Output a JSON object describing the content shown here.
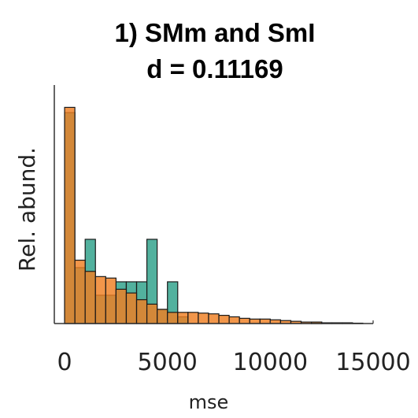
{
  "chart_data": {
    "type": "bar",
    "title": "1) SMm and SmI",
    "subtitle": "d = 0.11169",
    "xlabel": "mse",
    "ylabel": "Rel. abund.",
    "xlim": [
      -500,
      15000
    ],
    "ylim": [
      0,
      0.32
    ],
    "xticks": [
      0,
      5000,
      10000,
      15000
    ],
    "xtick_labels": [
      "0",
      "5000",
      "10000",
      "15000"
    ],
    "grid": false,
    "legend": "none",
    "bin_width": 500,
    "series": [
      {
        "color": "#2ca089",
        "bins": [
          {
            "x0": 0,
            "x1": 500,
            "value": 0.283
          },
          {
            "x0": 500,
            "x1": 1000,
            "value": 0.075
          },
          {
            "x0": 1000,
            "x1": 1500,
            "value": 0.113
          },
          {
            "x0": 1500,
            "x1": 2000,
            "value": 0.038
          },
          {
            "x0": 2000,
            "x1": 2500,
            "value": 0.038
          },
          {
            "x0": 2500,
            "x1": 3000,
            "value": 0.056
          },
          {
            "x0": 3000,
            "x1": 3500,
            "value": 0.056
          },
          {
            "x0": 3500,
            "x1": 4000,
            "value": 0.056
          },
          {
            "x0": 4000,
            "x1": 4500,
            "value": 0.113
          },
          {
            "x0": 4500,
            "x1": 5000,
            "value": 0.019
          },
          {
            "x0": 5000,
            "x1": 5500,
            "value": 0.056
          },
          {
            "x0": 5500,
            "x1": 6000,
            "value": 0.009
          },
          {
            "x0": 12000,
            "x1": 12500,
            "value": 0.002
          }
        ]
      },
      {
        "color": "#ef7f22",
        "bins": [
          {
            "x0": 0,
            "x1": 500,
            "value": 0.29
          },
          {
            "x0": 500,
            "x1": 1000,
            "value": 0.085
          },
          {
            "x0": 1000,
            "x1": 1500,
            "value": 0.07
          },
          {
            "x0": 1500,
            "x1": 2000,
            "value": 0.063
          },
          {
            "x0": 2000,
            "x1": 2500,
            "value": 0.061
          },
          {
            "x0": 2500,
            "x1": 3000,
            "value": 0.046
          },
          {
            "x0": 3000,
            "x1": 3500,
            "value": 0.041
          },
          {
            "x0": 3500,
            "x1": 4000,
            "value": 0.032
          },
          {
            "x0": 4000,
            "x1": 4500,
            "value": 0.026
          },
          {
            "x0": 4500,
            "x1": 5000,
            "value": 0.019
          },
          {
            "x0": 5000,
            "x1": 5500,
            "value": 0.015
          },
          {
            "x0": 5500,
            "x1": 6000,
            "value": 0.015
          },
          {
            "x0": 6000,
            "x1": 6500,
            "value": 0.015
          },
          {
            "x0": 6500,
            "x1": 7000,
            "value": 0.014
          },
          {
            "x0": 7000,
            "x1": 7500,
            "value": 0.013
          },
          {
            "x0": 7500,
            "x1": 8000,
            "value": 0.011
          },
          {
            "x0": 8000,
            "x1": 8500,
            "value": 0.009
          },
          {
            "x0": 8500,
            "x1": 9000,
            "value": 0.007
          },
          {
            "x0": 9000,
            "x1": 9500,
            "value": 0.006
          },
          {
            "x0": 9500,
            "x1": 10000,
            "value": 0.006
          },
          {
            "x0": 10000,
            "x1": 10500,
            "value": 0.005
          },
          {
            "x0": 10500,
            "x1": 11000,
            "value": 0.004
          },
          {
            "x0": 11000,
            "x1": 11500,
            "value": 0.003
          },
          {
            "x0": 11500,
            "x1": 12000,
            "value": 0.002
          },
          {
            "x0": 12000,
            "x1": 12500,
            "value": 0.002
          },
          {
            "x0": 12500,
            "x1": 13000,
            "value": 0.001
          },
          {
            "x0": 13000,
            "x1": 13500,
            "value": 0.001
          },
          {
            "x0": 13500,
            "x1": 14000,
            "value": 0.001
          },
          {
            "x0": 14000,
            "x1": 14500,
            "value": 0.0005
          }
        ]
      }
    ]
  }
}
